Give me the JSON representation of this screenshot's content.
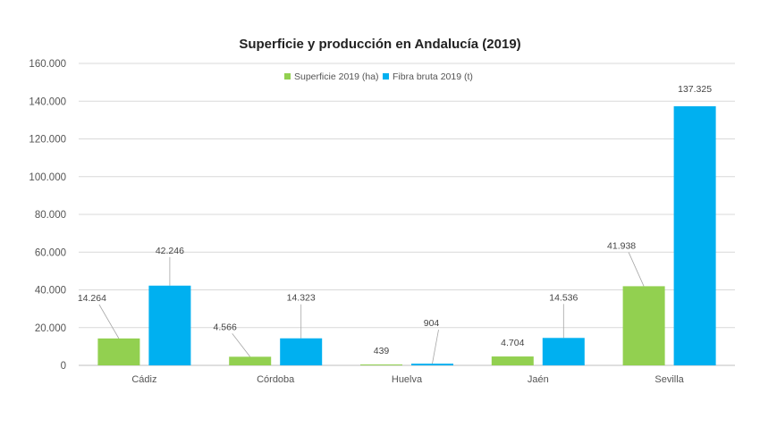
{
  "chart_data": {
    "type": "bar",
    "title": "Superficie y producción en Andalucía (2019)",
    "xlabel": "",
    "ylabel": "",
    "categories": [
      "Cádiz",
      "Córdoba",
      "Huelva",
      "Jaén",
      "Sevilla"
    ],
    "series": [
      {
        "name": "Superficie 2019 (ha)",
        "color": "#92d050",
        "values": [
          14264,
          4566,
          439,
          4704,
          41938
        ],
        "labels": [
          "14.264",
          "4.566",
          "439",
          "4.704",
          "41.938"
        ]
      },
      {
        "name": "Fibra bruta 2019 (t)",
        "color": "#00b0f0",
        "values": [
          42246,
          14323,
          904,
          14536,
          137325
        ],
        "labels": [
          "42.246",
          "14.323",
          "904",
          "14.536",
          "137.325"
        ]
      }
    ],
    "ylim": [
      0,
      160000
    ],
    "yticks": [
      0,
      20000,
      40000,
      60000,
      80000,
      100000,
      120000,
      140000,
      160000
    ],
    "ytick_labels": [
      "0",
      "20.000",
      "40.000",
      "60.000",
      "80.000",
      "100.000",
      "120.000",
      "140.000",
      "160.000"
    ],
    "grid": true,
    "legend_position": "top-center"
  }
}
